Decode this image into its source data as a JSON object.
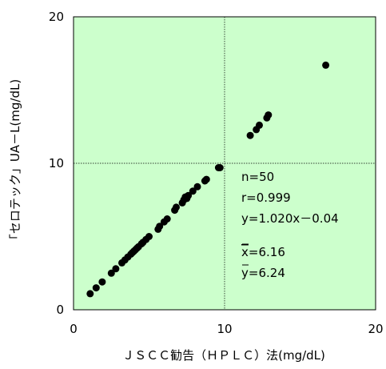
{
  "chart_data": {
    "type": "scatter",
    "xlabel": "ＪＳＣＣ勧告（ＨＰＬＣ）法(mg/dL)",
    "ylabel": "「セロテック」UA－L(mg/dL)",
    "xlim": [
      0,
      20
    ],
    "ylim": [
      0,
      20
    ],
    "x_ticks": [
      "0",
      "10",
      "20"
    ],
    "y_ticks": [
      "0",
      "10",
      "20"
    ],
    "grid": "center lines at x=10 and y=10",
    "background_color": "#ccffcc",
    "point_color": "#000000",
    "stats": {
      "n": "n=50",
      "r": "r=0.999",
      "regression": "y=1.020x－0.04",
      "xbar_symbol": "x",
      "xbar_value": "=6.16",
      "ybar_symbol": "y",
      "ybar_value": "=6.24"
    },
    "points": [
      [
        1.1,
        1.1
      ],
      [
        1.5,
        1.5
      ],
      [
        1.9,
        1.9
      ],
      [
        2.5,
        2.5
      ],
      [
        2.8,
        2.8
      ],
      [
        3.2,
        3.2
      ],
      [
        3.4,
        3.4
      ],
      [
        3.6,
        3.6
      ],
      [
        3.8,
        3.8
      ],
      [
        3.9,
        3.9
      ],
      [
        4.0,
        4.0
      ],
      [
        4.1,
        4.1
      ],
      [
        4.2,
        4.2
      ],
      [
        4.3,
        4.3
      ],
      [
        4.5,
        4.5
      ],
      [
        4.6,
        4.6
      ],
      [
        4.8,
        4.8
      ],
      [
        5.0,
        5.0
      ],
      [
        5.6,
        5.5
      ],
      [
        5.7,
        5.7
      ],
      [
        6.0,
        6.0
      ],
      [
        6.2,
        6.2
      ],
      [
        6.7,
        6.8
      ],
      [
        6.8,
        7.0
      ],
      [
        7.2,
        7.3
      ],
      [
        7.3,
        7.5
      ],
      [
        7.4,
        7.7
      ],
      [
        7.5,
        7.6
      ],
      [
        7.6,
        7.8
      ],
      [
        7.9,
        8.1
      ],
      [
        8.2,
        8.4
      ],
      [
        8.7,
        8.8
      ],
      [
        8.8,
        8.9
      ],
      [
        9.6,
        9.7
      ],
      [
        9.7,
        9.7
      ],
      [
        11.7,
        11.9
      ],
      [
        12.1,
        12.3
      ],
      [
        12.3,
        12.6
      ],
      [
        12.8,
        13.1
      ],
      [
        12.9,
        13.3
      ],
      [
        16.7,
        16.7
      ]
    ]
  }
}
